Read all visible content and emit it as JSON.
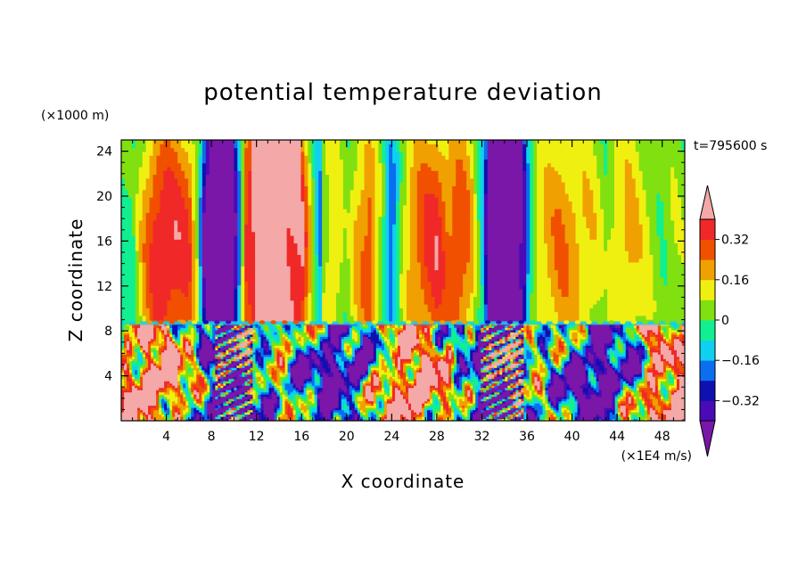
{
  "chart_data": {
    "type": "heatmap",
    "title": "potential temperature deviation",
    "xlabel": "X coordinate",
    "ylabel": "Z coordinate",
    "x_units": "(×1E4 m/s)",
    "y_units": "(×1000 m)",
    "time_label": "t=795600 s",
    "xlim": [
      0,
      50
    ],
    "ylim": [
      0,
      25
    ],
    "x_ticks": [
      4,
      8,
      12,
      16,
      20,
      24,
      28,
      32,
      36,
      40,
      44,
      48
    ],
    "x_tick_labels": [
      "4",
      "8",
      "12",
      "16",
      "20",
      "24",
      "28",
      "32",
      "36",
      "40",
      "44",
      "48"
    ],
    "y_ticks": [
      4,
      8,
      12,
      16,
      20,
      24
    ],
    "y_tick_labels": [
      "4",
      "8",
      "12",
      "16",
      "20",
      "24"
    ],
    "colorbar": {
      "levels": [
        -0.4,
        -0.32,
        -0.24,
        -0.16,
        -0.08,
        0,
        0.08,
        0.16,
        0.24,
        0.32,
        0.4
      ],
      "labels": [
        "0.32",
        "0.16",
        "0",
        "−0.16",
        "−0.32"
      ],
      "label_values": [
        0.32,
        0.16,
        0,
        -0.16,
        -0.32
      ],
      "colors": [
        "#7a16a8",
        "#4a0ab8",
        "#1010b0",
        "#0a6ef0",
        "#10d0f0",
        "#10f090",
        "#80e010",
        "#f0f010",
        "#f0a000",
        "#f05000",
        "#f02828",
        "#f4a8a8"
      ],
      "color_below": "#7a16a8",
      "color_above": "#f4a8a8"
    },
    "upper_profile": [
      {
        "x": 0.0,
        "v": -0.02
      },
      {
        "x": 1.0,
        "v": -0.04
      },
      {
        "x": 2.0,
        "v": 0.18
      },
      {
        "x": 3.0,
        "v": 0.34
      },
      {
        "x": 4.0,
        "v": 0.38
      },
      {
        "x": 5.0,
        "v": 0.34
      },
      {
        "x": 6.0,
        "v": 0.3
      },
      {
        "x": 6.8,
        "v": 0.05
      },
      {
        "x": 7.3,
        "v": -0.35
      },
      {
        "x": 8.0,
        "v": -0.5
      },
      {
        "x": 9.0,
        "v": -0.5
      },
      {
        "x": 10.0,
        "v": -0.45
      },
      {
        "x": 10.6,
        "v": -0.1
      },
      {
        "x": 11.0,
        "v": 0.32
      },
      {
        "x": 12.0,
        "v": 0.44
      },
      {
        "x": 14.0,
        "v": 0.46
      },
      {
        "x": 16.0,
        "v": 0.4
      },
      {
        "x": 17.0,
        "v": 0.05
      },
      {
        "x": 17.6,
        "v": -0.2
      },
      {
        "x": 18.0,
        "v": 0.08
      },
      {
        "x": 19.0,
        "v": 0.15
      },
      {
        "x": 20.0,
        "v": 0.02
      },
      {
        "x": 21.0,
        "v": 0.18
      },
      {
        "x": 22.0,
        "v": 0.28
      },
      {
        "x": 23.0,
        "v": 0.05
      },
      {
        "x": 24.0,
        "v": -0.25
      },
      {
        "x": 25.0,
        "v": 0.1
      },
      {
        "x": 26.0,
        "v": 0.22
      },
      {
        "x": 27.0,
        "v": 0.3
      },
      {
        "x": 28.0,
        "v": 0.34
      },
      {
        "x": 29.0,
        "v": 0.24
      },
      {
        "x": 30.0,
        "v": 0.3
      },
      {
        "x": 31.0,
        "v": 0.2
      },
      {
        "x": 32.0,
        "v": -0.1
      },
      {
        "x": 32.6,
        "v": -0.45
      },
      {
        "x": 33.5,
        "v": -0.55
      },
      {
        "x": 35.0,
        "v": -0.55
      },
      {
        "x": 35.8,
        "v": -0.35
      },
      {
        "x": 36.3,
        "v": -0.05
      },
      {
        "x": 37.0,
        "v": 0.12
      },
      {
        "x": 38.0,
        "v": 0.18
      },
      {
        "x": 39.0,
        "v": 0.22
      },
      {
        "x": 40.0,
        "v": 0.2
      },
      {
        "x": 41.0,
        "v": 0.16
      },
      {
        "x": 42.0,
        "v": 0.12
      },
      {
        "x": 43.0,
        "v": 0.04
      },
      {
        "x": 44.0,
        "v": 0.14
      },
      {
        "x": 45.0,
        "v": 0.18
      },
      {
        "x": 46.0,
        "v": 0.12
      },
      {
        "x": 47.0,
        "v": 0.06
      },
      {
        "x": 48.0,
        "v": 0.02
      },
      {
        "x": 49.0,
        "v": 0.06
      },
      {
        "x": 50.0,
        "v": 0.04
      }
    ],
    "interface_height": 8.7
  }
}
